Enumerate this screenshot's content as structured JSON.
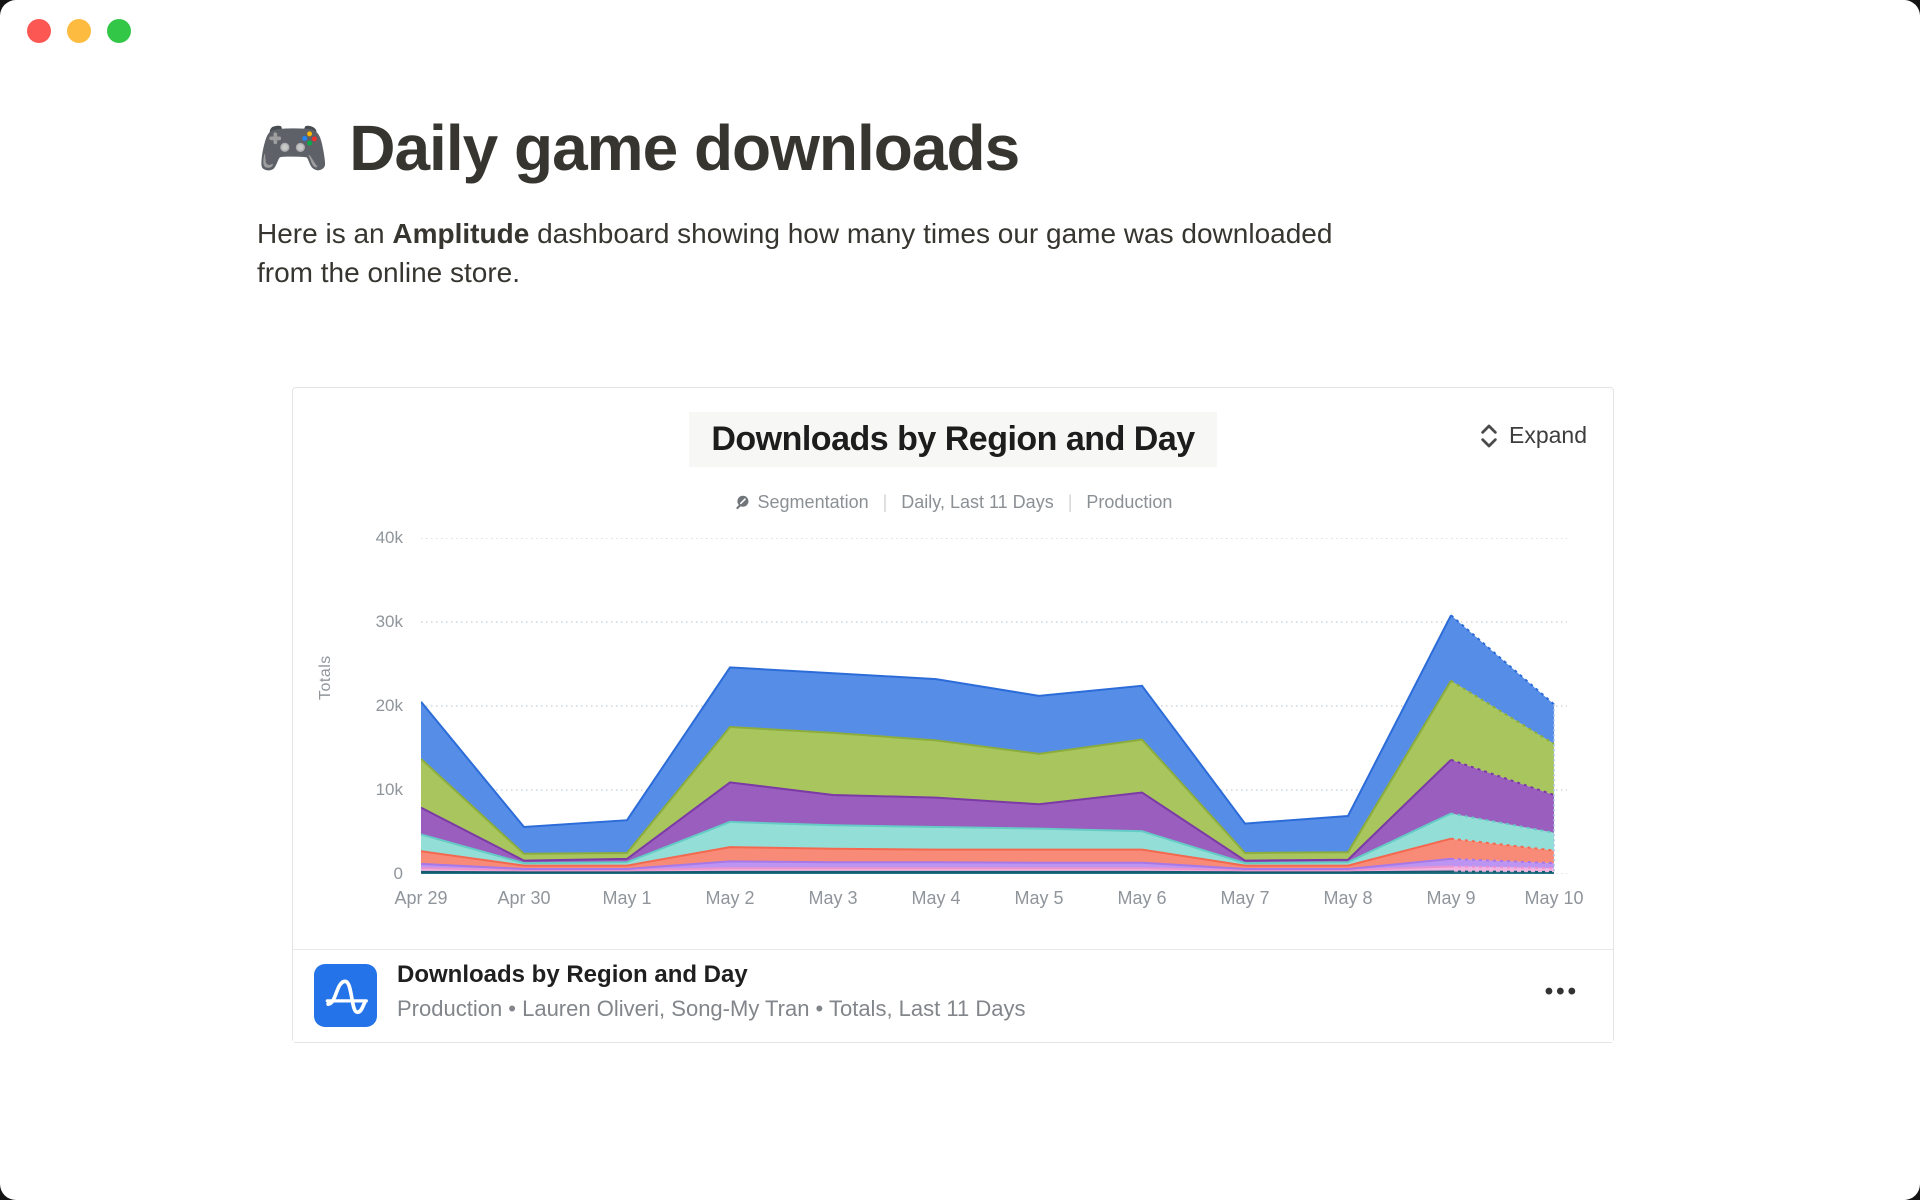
{
  "window": {
    "traffic_lights": [
      {
        "name": "close",
        "color": "#fc5753"
      },
      {
        "name": "minimize",
        "color": "#fdbc40"
      },
      {
        "name": "zoom",
        "color": "#33c748"
      }
    ]
  },
  "page": {
    "title_emoji": "🎮",
    "title": "Daily game downloads",
    "intro": {
      "pre": "Here is an ",
      "bold": "Amplitude",
      "post": " dashboard showing how many times our game was downloaded from the online store."
    }
  },
  "card": {
    "chart_header": {
      "title": "Downloads by Region and Day",
      "expand_label": "Expand",
      "meta": [
        "Segmentation",
        "Daily, Last 11 Days",
        "Production"
      ]
    },
    "footer": {
      "title": "Downloads by Region and Day",
      "subtitle": "Production • Lauren Oliveri, Song-My Tran • Totals, Last 11 Days",
      "menu_glyph": "•••"
    }
  },
  "chart_data": {
    "type": "area",
    "stacked": true,
    "title": "Downloads by Region and Day",
    "xlabel": "",
    "ylabel": "Totals",
    "ylim": [
      0,
      40000
    ],
    "yticks": [
      {
        "value": 0,
        "label": "0"
      },
      {
        "value": 10000,
        "label": "10k"
      },
      {
        "value": 20000,
        "label": "20k"
      },
      {
        "value": 30000,
        "label": "30k"
      },
      {
        "value": 40000,
        "label": "40k"
      }
    ],
    "grid": "dotted-horizontal",
    "legend_position": "none",
    "last_segment_dashed": true,
    "categories": [
      "Apr 29",
      "Apr 30",
      "May 1",
      "May 2",
      "May 3",
      "May 4",
      "May 5",
      "May 6",
      "May 7",
      "May 8",
      "May 9",
      "May 10"
    ],
    "series": [
      {
        "name": "series-dark-teal",
        "color": "#1b6b80",
        "stroke": "#135b6e",
        "values": [
          250,
          200,
          200,
          250,
          250,
          250,
          250,
          250,
          200,
          200,
          300,
          250
        ]
      },
      {
        "name": "series-pink",
        "color": "#f4aede",
        "stroke": "#eb93cf",
        "values": [
          450,
          250,
          250,
          450,
          450,
          450,
          450,
          450,
          250,
          250,
          600,
          450
        ]
      },
      {
        "name": "series-lavender",
        "color": "#b88ff2",
        "stroke": "#a678e8",
        "values": [
          500,
          150,
          150,
          800,
          700,
          700,
          650,
          650,
          150,
          150,
          900,
          600
        ]
      },
      {
        "name": "series-salmon",
        "color": "#f88570",
        "stroke": "#f4684f",
        "values": [
          1500,
          400,
          400,
          1700,
          1600,
          1500,
          1550,
          1550,
          400,
          400,
          2400,
          1500
        ]
      },
      {
        "name": "series-teal",
        "color": "#8edcd6",
        "stroke": "#64ccc4",
        "values": [
          2000,
          300,
          400,
          3000,
          2800,
          2700,
          2500,
          2200,
          300,
          400,
          3000,
          2100
        ]
      },
      {
        "name": "series-purple",
        "color": "#9355bb",
        "stroke": "#7b3aa5",
        "values": [
          3200,
          300,
          400,
          4700,
          3600,
          3500,
          2900,
          4600,
          300,
          300,
          6400,
          4500
        ]
      },
      {
        "name": "series-green",
        "color": "#a4c355",
        "stroke": "#8cad3c",
        "values": [
          5800,
          800,
          700,
          6600,
          7400,
          6800,
          6000,
          6300,
          900,
          900,
          9400,
          6100
        ]
      },
      {
        "name": "series-blue",
        "color": "#4d87e6",
        "stroke": "#2c6cd9",
        "values": [
          6800,
          3200,
          3900,
          7100,
          7100,
          7300,
          6900,
          6400,
          3500,
          4300,
          7800,
          4700
        ]
      }
    ],
    "totals": [
      20500,
      5600,
      6400,
      24600,
      23900,
      23200,
      21200,
      22400,
      6000,
      6900,
      30800,
      20200
    ],
    "gridline_color": "#cdd7de"
  }
}
